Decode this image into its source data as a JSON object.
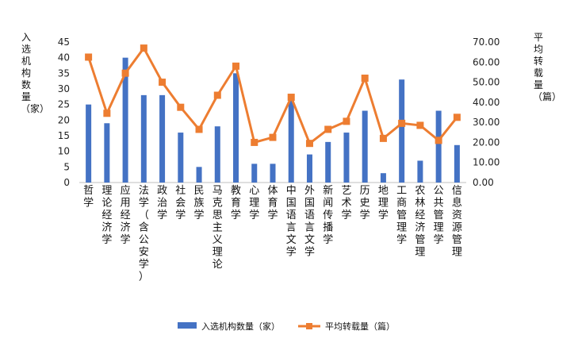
{
  "chart_data": {
    "type": "bar+line",
    "categories": [
      "哲学",
      "理论经济学",
      "应用经济学",
      "法学（含公安学）",
      "政治学",
      "社会学",
      "民族学",
      "马克思主义理论",
      "教育学",
      "心理学",
      "体育学",
      "中国语言文学",
      "外国语言文学",
      "新闻传播学",
      "艺术学",
      "历史学",
      "地理学",
      "工商管理学",
      "农林经济管理",
      "公共管理学",
      "信息资源管理"
    ],
    "series": [
      {
        "name": "入选机构数量（家）",
        "kind": "bar",
        "axis": "left",
        "color": "#4472C4",
        "values": [
          25,
          19,
          40,
          28,
          28,
          16,
          5,
          18,
          35,
          6,
          6,
          27,
          9,
          13,
          16,
          23,
          3,
          33,
          7,
          23,
          12
        ]
      },
      {
        "name": "平均转载量（篇）",
        "kind": "line",
        "axis": "right",
        "color": "#ED7D31",
        "values": [
          62.5,
          34.5,
          54.5,
          67.0,
          50.0,
          37.5,
          26.5,
          43.5,
          58.0,
          20.0,
          22.5,
          42.5,
          19.5,
          26.5,
          30.5,
          52.0,
          22.0,
          29.5,
          28.5,
          21.0,
          32.5
        ]
      }
    ],
    "y_left": {
      "label": "入选机构数量（家）",
      "range": [
        0,
        45
      ],
      "ticks": [
        "0",
        "5",
        "10",
        "15",
        "20",
        "25",
        "30",
        "35",
        "40",
        "45"
      ]
    },
    "y_right": {
      "label": "平均转载量（篇）",
      "range": [
        0,
        70
      ],
      "ticks": [
        "0.00",
        "10.00",
        "20.00",
        "30.00",
        "40.00",
        "50.00",
        "60.00",
        "70.00"
      ]
    },
    "grid": false,
    "legend": "bottom"
  }
}
